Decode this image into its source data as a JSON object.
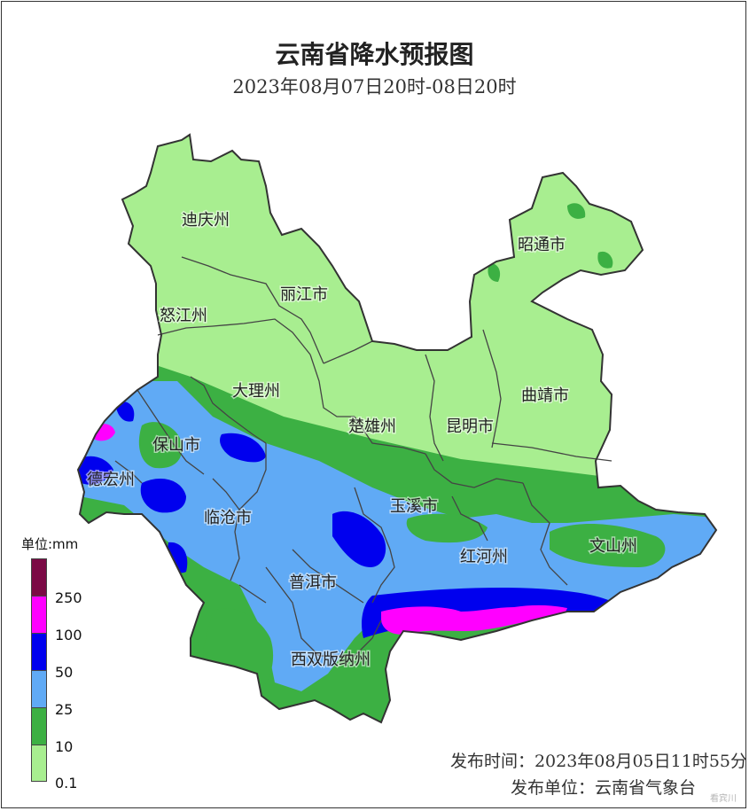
{
  "title": "云南省降水预报图",
  "subtitle": "2023年08月07日20时-08日20时",
  "legend": {
    "unit_label": "单位:mm",
    "levels": [
      {
        "label": "250",
        "color": "#7b0a45"
      },
      {
        "label": "100",
        "color": "#ff00ff"
      },
      {
        "label": "50",
        "color": "#0000ee"
      },
      {
        "label": "25",
        "color": "#60aaf5"
      },
      {
        "label": "10",
        "color": "#3cb043"
      },
      {
        "label": "0.1",
        "color": "#a8ee90"
      }
    ]
  },
  "regions": [
    {
      "name": "迪庆州"
    },
    {
      "name": "丽江市"
    },
    {
      "name": "怒江州"
    },
    {
      "name": "昭通市"
    },
    {
      "name": "大理州"
    },
    {
      "name": "曲靖市"
    },
    {
      "name": "楚雄州"
    },
    {
      "name": "昆明市"
    },
    {
      "name": "保山市"
    },
    {
      "name": "德宏州"
    },
    {
      "name": "玉溪市"
    },
    {
      "name": "临沧市"
    },
    {
      "name": "文山州"
    },
    {
      "name": "红河州"
    },
    {
      "name": "普洱市"
    },
    {
      "name": "西双版纳州"
    }
  ],
  "footer": {
    "release_time": "发布时间：2023年08月05日11时55分",
    "release_unit": "发布单位：云南省气象台"
  },
  "watermark": "看宾川",
  "colors": {
    "light_green": "#a8ee90",
    "green": "#3cb043",
    "light_blue": "#60aaf5",
    "blue": "#0000ee",
    "magenta": "#ff00ff",
    "boundary": "#333333"
  }
}
